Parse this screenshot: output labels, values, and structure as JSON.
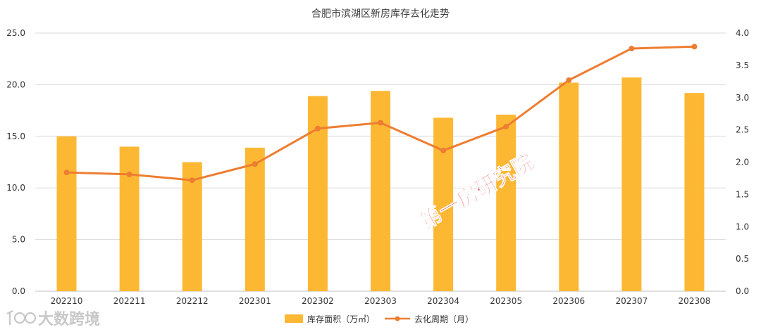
{
  "chart_data": {
    "type": "bar",
    "title": "合肥市滨湖区新房库存去化走势",
    "categories": [
      "202210",
      "202211",
      "202212",
      "202301",
      "202302",
      "202303",
      "202304",
      "202305",
      "202306",
      "202307",
      "202308"
    ],
    "series": [
      {
        "name": "库存面积（万㎡）",
        "type": "bar",
        "axis": "left",
        "color": "#FDB833",
        "values": [
          15.0,
          14.0,
          12.5,
          13.9,
          18.9,
          19.4,
          16.8,
          17.1,
          20.2,
          20.7,
          19.2
        ]
      },
      {
        "name": "去化周期（月）",
        "type": "line",
        "axis": "right",
        "color": "#ED7D31",
        "values": [
          1.84,
          1.81,
          1.72,
          1.97,
          2.52,
          2.61,
          2.18,
          2.55,
          3.27,
          3.76,
          3.79
        ]
      }
    ],
    "y_left": {
      "range": [
        0,
        25
      ],
      "ticks": [
        "0.0",
        "5.0",
        "10.0",
        "15.0",
        "20.0",
        "25.0"
      ]
    },
    "y_right": {
      "range": [
        0,
        4
      ],
      "ticks": [
        "0.0",
        "0.5",
        "1.0",
        "1.5",
        "2.0",
        "2.5",
        "3.0",
        "3.5",
        "4.0"
      ]
    },
    "grid": true,
    "legend": "bottom-center"
  },
  "watermark": {
    "text": "第一房研究院",
    "color": "#E8413C"
  },
  "brand_logo": {
    "text": "大数跨境",
    "icon": "logo-icon"
  }
}
